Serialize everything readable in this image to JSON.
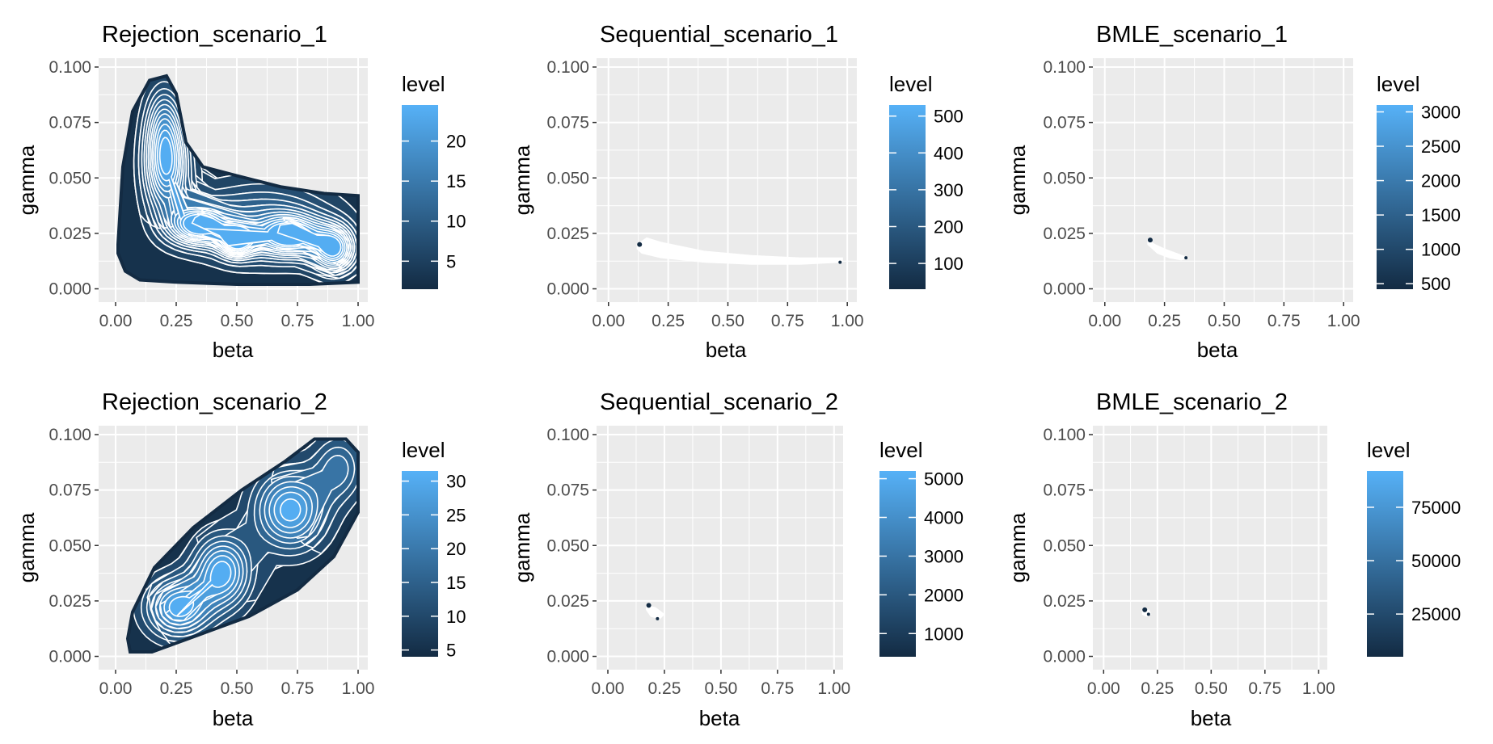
{
  "colors": {
    "panel_bg": "#ebebeb",
    "grid": "#ffffff",
    "low": "#132b43",
    "high": "#56b1f7",
    "contour": "#ffffff"
  },
  "chart_data": [
    {
      "type": "contour",
      "title": "Rejection_scenario_1",
      "xlabel": "beta",
      "ylabel": "gamma",
      "xlim": [
        -0.07,
        1.04
      ],
      "ylim": [
        -0.006,
        0.104
      ],
      "x_ticks": [
        "0.00",
        "0.25",
        "0.50",
        "0.75",
        "1.00"
      ],
      "y_ticks": [
        "0.000",
        "0.025",
        "0.050",
        "0.075",
        "0.100"
      ],
      "legend": {
        "title": "level",
        "ticks": [
          "5",
          "10",
          "15",
          "20"
        ],
        "tick_values": [
          5,
          10,
          15,
          20
        ],
        "range": [
          1.5,
          24.5
        ]
      },
      "region": {
        "poly": [
          [
            0.01,
            0.02
          ],
          [
            0.03,
            0.055
          ],
          [
            0.07,
            0.08
          ],
          [
            0.14,
            0.094
          ],
          [
            0.21,
            0.096
          ],
          [
            0.25,
            0.088
          ],
          [
            0.29,
            0.066
          ],
          [
            0.36,
            0.055
          ],
          [
            0.5,
            0.051
          ],
          [
            0.68,
            0.046
          ],
          [
            0.86,
            0.043
          ],
          [
            1.0,
            0.042
          ],
          [
            1.0,
            0.003
          ],
          [
            0.8,
            0.002
          ],
          [
            0.5,
            0.002
          ],
          [
            0.25,
            0.003
          ],
          [
            0.1,
            0.004
          ],
          [
            0.04,
            0.008
          ],
          [
            0.01,
            0.016
          ]
        ]
      },
      "peaks": [
        {
          "x": 0.21,
          "y": 0.055,
          "sx": 0.06,
          "sy": 0.014,
          "h": 20
        },
        {
          "x": 0.34,
          "y": 0.029,
          "sx": 0.08,
          "sy": 0.006,
          "h": 22
        },
        {
          "x": 0.5,
          "y": 0.022,
          "sx": 0.05,
          "sy": 0.005,
          "h": 20
        },
        {
          "x": 0.72,
          "y": 0.024,
          "sx": 0.09,
          "sy": 0.006,
          "h": 20
        },
        {
          "x": 0.9,
          "y": 0.018,
          "sx": 0.06,
          "sy": 0.007,
          "h": 21
        },
        {
          "x": 0.6,
          "y": 0.03,
          "sx": 0.2,
          "sy": 0.012,
          "h": 10
        },
        {
          "x": 0.2,
          "y": 0.075,
          "sx": 0.05,
          "sy": 0.012,
          "h": 10
        }
      ],
      "peak_max": 23,
      "contour_count": 12
    },
    {
      "type": "contour",
      "title": "Sequential_scenario_1",
      "xlabel": "beta",
      "ylabel": "gamma",
      "xlim": [
        -0.05,
        1.04
      ],
      "ylim": [
        -0.006,
        0.104
      ],
      "x_ticks": [
        "0.00",
        "0.25",
        "0.50",
        "0.75",
        "1.00"
      ],
      "y_ticks": [
        "0.000",
        "0.025",
        "0.050",
        "0.075",
        "0.100"
      ],
      "legend": {
        "title": "level",
        "ticks": [
          "100",
          "200",
          "300",
          "400",
          "500"
        ],
        "tick_values": [
          100,
          200,
          300,
          400,
          500
        ],
        "range": [
          30,
          530
        ]
      },
      "region": {
        "poly": [
          [
            0.12,
            0.02
          ],
          [
            0.16,
            0.023
          ],
          [
            0.22,
            0.021
          ],
          [
            0.4,
            0.017
          ],
          [
            0.6,
            0.015
          ],
          [
            0.8,
            0.014
          ],
          [
            0.98,
            0.014
          ],
          [
            0.98,
            0.012
          ],
          [
            0.8,
            0.011
          ],
          [
            0.6,
            0.011
          ],
          [
            0.4,
            0.012
          ],
          [
            0.22,
            0.014
          ],
          [
            0.14,
            0.016
          ],
          [
            0.12,
            0.018
          ]
        ]
      },
      "peaks": [],
      "peak_max": 0,
      "contour_count": 0
    },
    {
      "type": "contour",
      "title": "BMLE_scenario_1",
      "xlabel": "beta",
      "ylabel": "gamma",
      "xlim": [
        -0.05,
        1.04
      ],
      "ylim": [
        -0.006,
        0.104
      ],
      "x_ticks": [
        "0.00",
        "0.25",
        "0.50",
        "0.75",
        "1.00"
      ],
      "y_ticks": [
        "0.000",
        "0.025",
        "0.050",
        "0.075",
        "0.100"
      ],
      "legend": {
        "title": "level",
        "ticks": [
          "500",
          "1000",
          "1500",
          "2000",
          "2500",
          "3000"
        ],
        "tick_values": [
          500,
          1000,
          1500,
          2000,
          2500,
          3000
        ],
        "range": [
          420,
          3100
        ]
      },
      "region": {
        "poly": [
          [
            0.18,
            0.022
          ],
          [
            0.21,
            0.02
          ],
          [
            0.25,
            0.018
          ],
          [
            0.3,
            0.016
          ],
          [
            0.35,
            0.014
          ],
          [
            0.32,
            0.013
          ],
          [
            0.27,
            0.014
          ],
          [
            0.22,
            0.016
          ],
          [
            0.18,
            0.02
          ]
        ]
      },
      "peaks": [],
      "peak_max": 0,
      "contour_count": 0
    },
    {
      "type": "contour",
      "title": "Rejection_scenario_2",
      "xlabel": "beta",
      "ylabel": "gamma",
      "xlim": [
        -0.07,
        1.04
      ],
      "ylim": [
        -0.006,
        0.104
      ],
      "x_ticks": [
        "0.00",
        "0.25",
        "0.50",
        "0.75",
        "1.00"
      ],
      "y_ticks": [
        "0.000",
        "0.025",
        "0.050",
        "0.075",
        "0.100"
      ],
      "legend": {
        "title": "level",
        "ticks": [
          "5",
          "10",
          "15",
          "20",
          "25",
          "30"
        ],
        "tick_values": [
          5,
          10,
          15,
          20,
          25,
          30
        ],
        "range": [
          4,
          31.5
        ]
      },
      "region": {
        "poly": [
          [
            0.05,
            0.008
          ],
          [
            0.07,
            0.02
          ],
          [
            0.16,
            0.04
          ],
          [
            0.32,
            0.058
          ],
          [
            0.52,
            0.075
          ],
          [
            0.7,
            0.088
          ],
          [
            0.82,
            0.098
          ],
          [
            0.95,
            0.098
          ],
          [
            1.0,
            0.092
          ],
          [
            1.0,
            0.065
          ],
          [
            0.9,
            0.045
          ],
          [
            0.75,
            0.03
          ],
          [
            0.55,
            0.018
          ],
          [
            0.35,
            0.01
          ],
          [
            0.15,
            0.002
          ],
          [
            0.06,
            0.002
          ]
        ]
      },
      "peaks": [
        {
          "x": 0.26,
          "y": 0.022,
          "sx": 0.09,
          "sy": 0.009,
          "h": 27
        },
        {
          "x": 0.44,
          "y": 0.038,
          "sx": 0.08,
          "sy": 0.011,
          "h": 27
        },
        {
          "x": 0.72,
          "y": 0.066,
          "sx": 0.1,
          "sy": 0.012,
          "h": 27
        },
        {
          "x": 0.92,
          "y": 0.085,
          "sx": 0.07,
          "sy": 0.01,
          "h": 14
        }
      ],
      "peak_max": 28,
      "contour_count": 8
    },
    {
      "type": "contour",
      "title": "Sequential_scenario_2",
      "xlabel": "beta",
      "ylabel": "gamma",
      "xlim": [
        -0.05,
        1.04
      ],
      "ylim": [
        -0.006,
        0.104
      ],
      "x_ticks": [
        "0.00",
        "0.25",
        "0.50",
        "0.75",
        "1.00"
      ],
      "y_ticks": [
        "0.000",
        "0.025",
        "0.050",
        "0.075",
        "0.100"
      ],
      "legend": {
        "title": "level",
        "ticks": [
          "1000",
          "2000",
          "3000",
          "4000",
          "5000"
        ],
        "tick_values": [
          1000,
          2000,
          3000,
          4000,
          5000
        ],
        "range": [
          400,
          5200
        ]
      },
      "region": {
        "poly": [
          [
            0.17,
            0.023
          ],
          [
            0.21,
            0.022
          ],
          [
            0.25,
            0.019
          ],
          [
            0.23,
            0.017
          ],
          [
            0.19,
            0.018
          ],
          [
            0.17,
            0.021
          ]
        ]
      },
      "peaks": [],
      "peak_max": 0,
      "contour_count": 0
    },
    {
      "type": "contour",
      "title": "BMLE_scenario_2",
      "xlabel": "beta",
      "ylabel": "gamma",
      "xlim": [
        -0.05,
        1.04
      ],
      "ylim": [
        -0.006,
        0.104
      ],
      "x_ticks": [
        "0.00",
        "0.25",
        "0.50",
        "0.75",
        "1.00"
      ],
      "y_ticks": [
        "0.000",
        "0.025",
        "0.050",
        "0.075",
        "0.100"
      ],
      "legend": {
        "title": "level",
        "ticks": [
          "25000",
          "50000",
          "75000"
        ],
        "tick_values": [
          25000,
          50000,
          75000
        ],
        "range": [
          5000,
          92000
        ]
      },
      "region": {
        "poly": [
          [
            0.18,
            0.021
          ],
          [
            0.21,
            0.021
          ],
          [
            0.22,
            0.019
          ],
          [
            0.2,
            0.018
          ],
          [
            0.18,
            0.019
          ]
        ]
      },
      "peaks": [],
      "peak_max": 0,
      "contour_count": 0
    }
  ]
}
